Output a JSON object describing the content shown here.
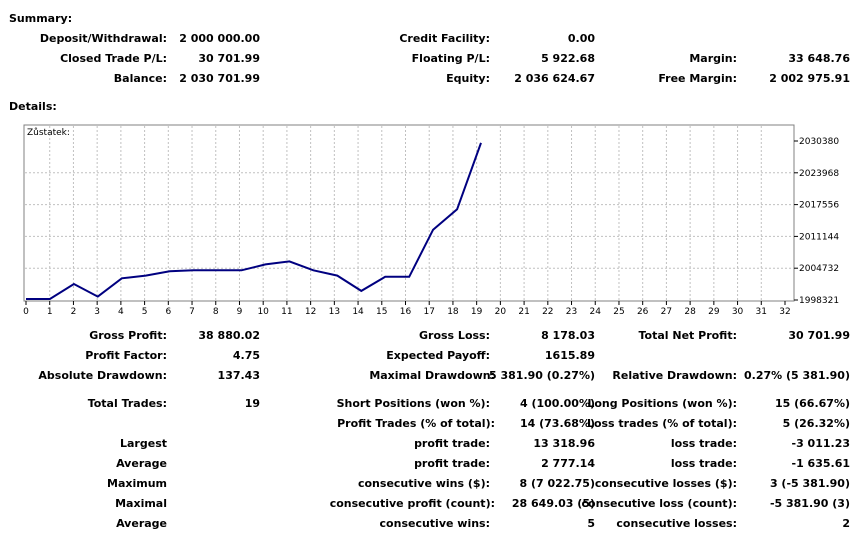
{
  "summary": {
    "title": "Summary:",
    "deposit_label": "Deposit/Withdrawal:",
    "deposit_value": "2 000 000.00",
    "credit_label": "Credit Facility:",
    "credit_value": "0.00",
    "closed_label": "Closed Trade P/L:",
    "closed_value": "30 701.99",
    "floating_label": "Floating P/L:",
    "floating_value": "5 922.68",
    "margin_label": "Margin:",
    "margin_value": "33 648.76",
    "balance_label": "Balance:",
    "balance_value": "2 030 701.99",
    "equity_label": "Equity:",
    "equity_value": "2 036 624.67",
    "free_margin_label": "Free Margin:",
    "free_margin_value": "2 002 975.91"
  },
  "details": {
    "title": "Details:"
  },
  "chart_data": {
    "type": "line",
    "legend": "Zůstatek:",
    "x": [
      0,
      1,
      2,
      3,
      4,
      5,
      6,
      7,
      8,
      9,
      10,
      11,
      12,
      13,
      14,
      15,
      16,
      17,
      18,
      19
    ],
    "y": [
      1998515,
      1998515,
      2001550,
      1999000,
      2002700,
      2003250,
      2004100,
      2004300,
      2004300,
      2004300,
      2005500,
      2006100,
      2004300,
      2003250,
      2000150,
      2003000,
      2003000,
      2012500,
      2016600,
      2030000
    ],
    "x_ticks": [
      "0",
      "1",
      "2",
      "3",
      "4",
      "5",
      "6",
      "7",
      "8",
      "9",
      "10",
      "11",
      "12",
      "13",
      "14",
      "15",
      "16",
      "17",
      "18",
      "19",
      "20",
      "21",
      "22",
      "23",
      "24",
      "25",
      "26",
      "27",
      "28",
      "29",
      "30",
      "31",
      "32"
    ],
    "y_ticks": [
      "2030380",
      "2023968",
      "2017556",
      "2011144",
      "2004732",
      "1998321"
    ],
    "ylim": [
      1998321,
      2030380
    ],
    "xlim": [
      0,
      32
    ],
    "grid": true,
    "line_color": "#000080"
  },
  "stats": {
    "gross_profit_label": "Gross Profit:",
    "gross_profit_value": "38 880.02",
    "gross_loss_label": "Gross Loss:",
    "gross_loss_value": "8 178.03",
    "total_net_label": "Total Net Profit:",
    "total_net_value": "30 701.99",
    "profit_factor_label": "Profit Factor:",
    "profit_factor_value": "4.75",
    "expected_payoff_label": "Expected Payoff:",
    "expected_payoff_value": "1615.89",
    "abs_dd_label": "Absolute Drawdown:",
    "abs_dd_value": "137.43",
    "max_dd_label": "Maximal Drawdown:",
    "max_dd_value": "5 381.90 (0.27%)",
    "rel_dd_label": "Relative Drawdown:",
    "rel_dd_value": "0.27% (5 381.90)",
    "total_trades_label": "Total Trades:",
    "total_trades_value": "19",
    "short_label": "Short Positions (won %):",
    "short_value": "4 (100.00%)",
    "long_label": "Long Positions (won %):",
    "long_value": "15 (66.67%)",
    "profit_trades_label": "Profit Trades (% of total):",
    "profit_trades_value": "14 (73.68%)",
    "loss_trades_label": "Loss trades (% of total):",
    "loss_trades_value": "5 (26.32%)",
    "largest_label": "Largest",
    "largest_profit_label": "profit trade:",
    "largest_profit_value": "13 318.96",
    "largest_loss_label": "loss trade:",
    "largest_loss_value": "-3 011.23",
    "average_label": "Average",
    "avg_profit_label": "profit trade:",
    "avg_profit_value": "2 777.14",
    "avg_loss_label": "loss trade:",
    "avg_loss_value": "-1 635.61",
    "maximum_label": "Maximum",
    "max_cons_wins_label": "consecutive wins ($):",
    "max_cons_wins_value": "8 (7 022.75)",
    "max_cons_losses_label": "consecutive losses ($):",
    "max_cons_losses_value": "3 (-5 381.90)",
    "maximal_label": "Maximal",
    "maximal_profit_label": "consecutive profit (count):",
    "maximal_profit_value": "28 649.03 (5)",
    "maximal_loss_label": "consecutive loss (count):",
    "maximal_loss_value": "-5 381.90 (3)",
    "average2_label": "Average",
    "avg_cons_wins_label": "consecutive wins:",
    "avg_cons_wins_value": "5",
    "avg_cons_losses_label": "consecutive losses:",
    "avg_cons_losses_value": "2"
  }
}
